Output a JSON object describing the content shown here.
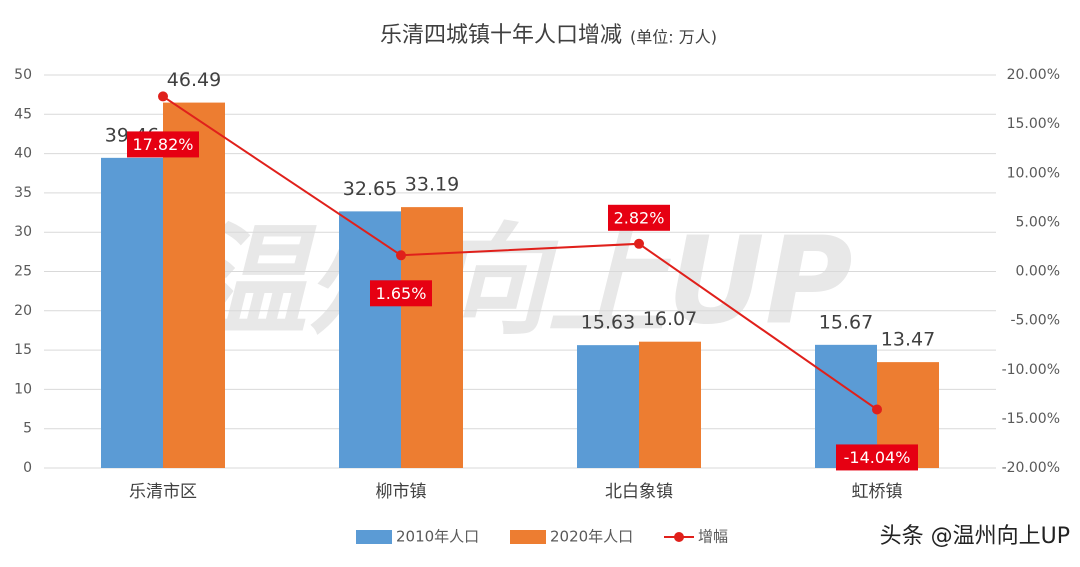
{
  "chart_data": {
    "type": "bar_line",
    "title": "乐清四城镇十年人口增减",
    "subtitle": "(单位: 万人)",
    "categories": [
      "乐清市区",
      "柳市镇",
      "北白象镇",
      "虹桥镇"
    ],
    "series": [
      {
        "name": "2010年人口",
        "color": "#5b9bd5",
        "type": "bar",
        "values": [
          39.46,
          32.65,
          15.63,
          15.67
        ]
      },
      {
        "name": "2020年人口",
        "color": "#ed7d31",
        "type": "bar",
        "values": [
          46.49,
          33.19,
          16.07,
          13.47
        ]
      },
      {
        "name": "增幅",
        "color": "#e0201b",
        "type": "line",
        "axis": "y2",
        "values": [
          17.82,
          1.65,
          2.82,
          -14.04
        ],
        "value_labels": [
          "17.82%",
          "1.65%",
          "2.82%",
          "-14.04%"
        ]
      }
    ],
    "ylim": [
      0,
      50
    ],
    "yticks": [
      0,
      5,
      10,
      15,
      20,
      25,
      30,
      35,
      40,
      45,
      50
    ],
    "y2lim": [
      -20,
      20
    ],
    "y2ticks": [
      {
        "value": -20,
        "label": "-20.00%"
      },
      {
        "value": -15,
        "label": "-15.00%"
      },
      {
        "value": -10,
        "label": "-10.00%"
      },
      {
        "value": -5,
        "label": "-5.00%"
      },
      {
        "value": 0,
        "label": "0.00%"
      },
      {
        "value": 5,
        "label": "5.00%"
      },
      {
        "value": 10,
        "label": "10.00%"
      },
      {
        "value": 15,
        "label": "15.00%"
      },
      {
        "value": 20,
        "label": "20.00%"
      }
    ],
    "grid": true,
    "legend": "bottom",
    "watermark": "温州向上UP",
    "credit": "头条 @温州向上UP"
  }
}
